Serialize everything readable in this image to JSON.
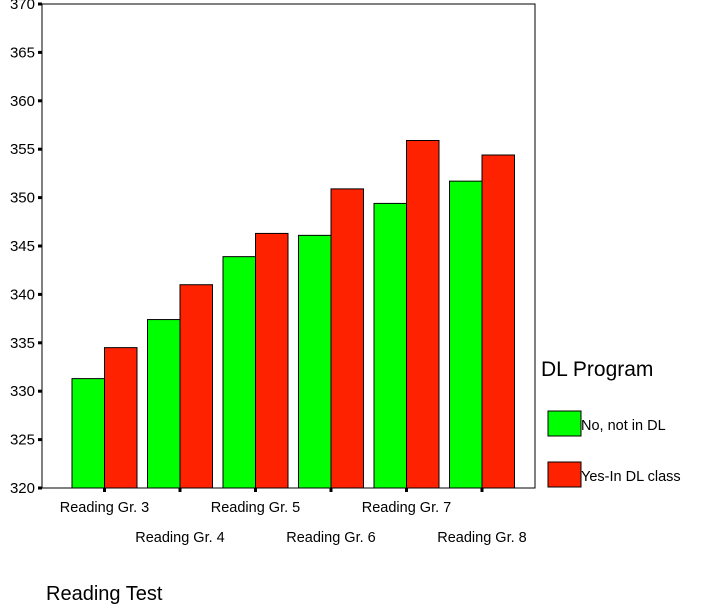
{
  "chart_data": {
    "type": "bar",
    "categories": [
      "Reading Gr. 3",
      "Reading Gr. 4",
      "Reading Gr. 5",
      "Reading Gr. 6",
      "Reading Gr. 7",
      "Reading Gr. 8"
    ],
    "series": [
      {
        "name": "No, not in DL",
        "color": "#00ff00",
        "values": [
          331.3,
          337.4,
          343.9,
          346.1,
          349.4,
          351.7
        ]
      },
      {
        "name": "Yes-In DL class",
        "color": "#ff2200",
        "values": [
          334.5,
          341.0,
          346.3,
          350.9,
          355.9,
          354.4
        ]
      }
    ],
    "xlabel": "Reading Test",
    "ylabel": "",
    "ylim": [
      320,
      370
    ],
    "yticks": [
      320,
      325,
      330,
      335,
      340,
      345,
      350,
      355,
      360,
      365,
      370
    ],
    "legend": {
      "title": "DL Program",
      "placement": "right"
    },
    "grid": false
  }
}
